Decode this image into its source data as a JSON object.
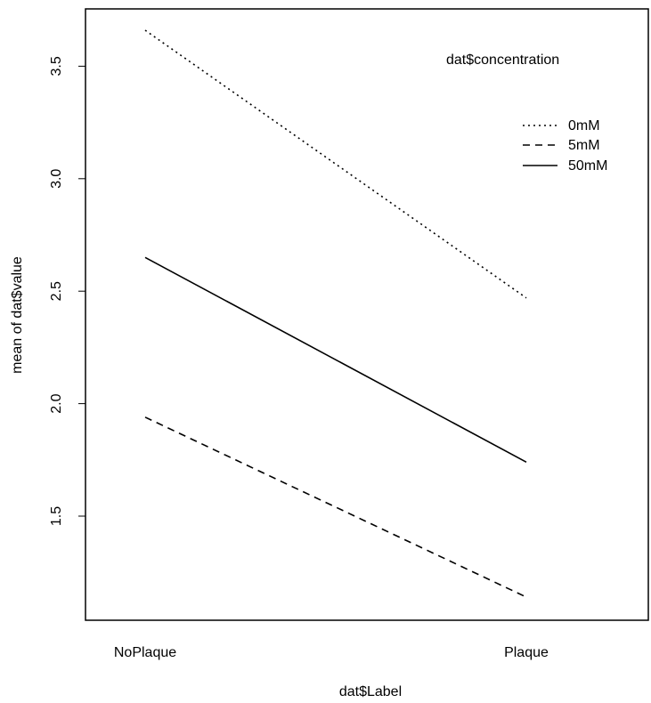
{
  "chart_data": {
    "type": "line",
    "title": "",
    "xlabel": "dat$Label",
    "ylabel": "mean of  dat$value",
    "categories": [
      "NoPlaque",
      "Plaque"
    ],
    "yticks": [
      1.5,
      2.0,
      2.5,
      3.0,
      3.5
    ],
    "ytick_labels": [
      "1.5",
      "2.0",
      "2.5",
      "3.0",
      "3.5"
    ],
    "ylim": [
      1.14,
      3.66
    ],
    "grid": false,
    "legend": {
      "title": "dat$concentration",
      "position": "top-right",
      "entries": [
        "0mM",
        "5mM",
        "50mM"
      ]
    },
    "series": [
      {
        "name": "0mM",
        "values": [
          3.66,
          2.47
        ],
        "line_style": "dotted"
      },
      {
        "name": "5mM",
        "values": [
          1.94,
          1.14
        ],
        "line_style": "dashed"
      },
      {
        "name": "50mM",
        "values": [
          2.65,
          1.74
        ],
        "line_style": "solid"
      }
    ]
  }
}
